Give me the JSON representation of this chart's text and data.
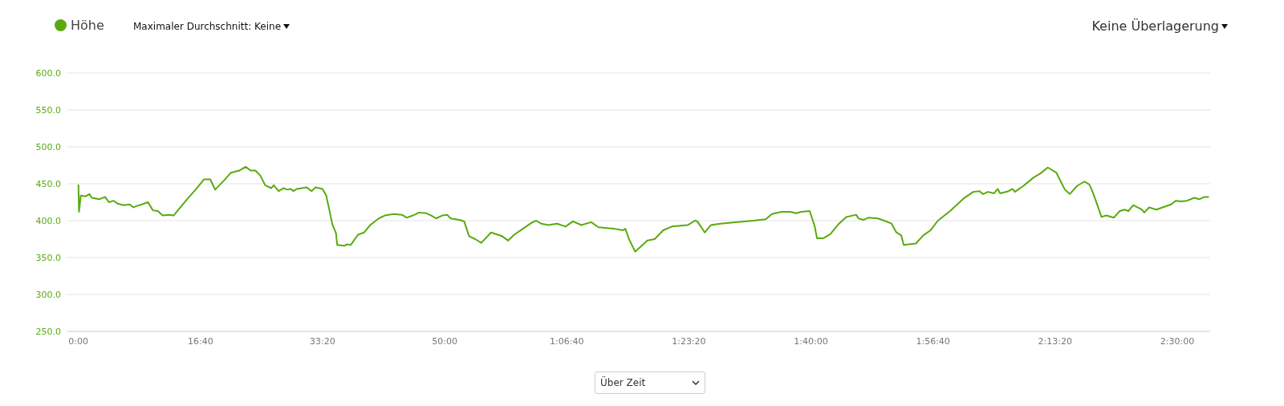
{
  "chart_data": {
    "type": "line",
    "annotations": [
      "Maximaler Durchschnitt: Keine",
      "Keine Überlagerung",
      "Über Zeit"
    ],
    "x": [
      0,
      5,
      20,
      60,
      90,
      110,
      170,
      220,
      250,
      290,
      320,
      370,
      420,
      450,
      480,
      520,
      570,
      610,
      650,
      690,
      740,
      780,
      820,
      890,
      960,
      1030,
      1080,
      1120,
      1190,
      1250,
      1320,
      1370,
      1410,
      1450,
      1490,
      1530,
      1580,
      1600,
      1640,
      1680,
      1710,
      1740,
      1760,
      1790,
      1870,
      1910,
      1940,
      2000,
      2030,
      2060,
      2080,
      2110,
      2120,
      2180,
      2200,
      2230,
      2290,
      2340,
      2390,
      2460,
      2510,
      2580,
      2650,
      2690,
      2740,
      2790,
      2850,
      2890,
      2930,
      2980,
      3020,
      3050,
      3120,
      3160,
      3200,
      3250,
      3300,
      3380,
      3470,
      3520,
      3570,
      3650,
      3720,
      3750,
      3790,
      3850,
      3920,
      3990,
      4050,
      4120,
      4200,
      4260,
      4390,
      4460,
      4480,
      4510,
      4560,
      4660,
      4720,
      4790,
      4860,
      4990,
      5050,
      5070,
      5130,
      5180,
      5260,
      5400,
      5530,
      5630,
      5680,
      5760,
      5830,
      5880,
      5920,
      5990,
      6030,
      6050,
      6100,
      6160,
      6230,
      6290,
      6370,
      6390,
      6430,
      6470,
      6550,
      6600,
      6660,
      6700,
      6740,
      6760,
      6800,
      6860,
      6920,
      6980,
      7040,
      7140,
      7250,
      7330,
      7380,
      7410,
      7450,
      7500,
      7530,
      7550,
      7620,
      7650,
      7670,
      7740,
      7820,
      7880,
      7940,
      8010,
      8080,
      8120,
      8180,
      8240,
      8280,
      8300,
      8340,
      8380,
      8420,
      8480,
      8530,
      8570,
      8600,
      8640,
      8710,
      8730,
      8770,
      8830,
      8880,
      8950,
      8990,
      9030,
      9080,
      9140,
      9180,
      9220,
      9260
    ],
    "series": [
      {
        "name": "Höhe",
        "color": "#5aaa0f",
        "values": [
          449,
          412,
          434,
          433,
          436,
          431,
          429,
          432,
          425,
          427,
          423,
          421,
          422,
          418,
          420,
          422,
          425,
          414,
          413,
          407,
          408,
          407,
          415,
          429,
          442,
          456,
          456,
          442,
          454,
          465,
          468,
          473,
          468,
          468,
          461,
          448,
          444,
          448,
          440,
          444,
          442,
          443,
          440,
          443,
          445,
          440,
          445,
          443,
          434,
          411,
          395,
          383,
          367,
          366,
          368,
          367,
          381,
          384,
          394,
          403,
          407,
          409,
          408,
          404,
          407,
          411,
          410,
          407,
          403,
          407,
          408,
          403,
          401,
          399,
          379,
          375,
          370,
          384,
          379,
          373,
          381,
          390,
          398,
          400,
          396,
          394,
          396,
          392,
          399,
          394,
          398,
          391,
          389,
          387,
          389,
          375,
          358,
          373,
          375,
          387,
          392,
          394,
          400,
          399,
          384,
          394,
          396,
          398,
          400,
          402,
          409,
          412,
          412,
          410,
          412,
          413,
          393,
          376,
          376,
          382,
          396,
          405,
          408,
          403,
          401,
          404,
          403,
          400,
          396,
          384,
          380,
          367,
          368,
          369,
          380,
          387,
          400,
          413,
          430,
          439,
          440,
          436,
          439,
          437,
          443,
          437,
          440,
          443,
          439,
          447,
          458,
          464,
          472,
          465,
          442,
          436,
          447,
          453,
          449,
          442,
          424,
          405,
          407,
          404,
          413,
          415,
          413,
          421,
          415,
          411,
          418,
          415,
          418,
          422,
          427,
          426,
          427,
          431,
          429,
          432,
          432
        ]
      }
    ],
    "xlim": [
      -90,
      9270
    ],
    "xticks": [
      {
        "value": 0,
        "label": "0:00"
      },
      {
        "value": 1000,
        "label": "16:40"
      },
      {
        "value": 2000,
        "label": "33:20"
      },
      {
        "value": 3000,
        "label": "50:00"
      },
      {
        "value": 4000,
        "label": "1:06:40"
      },
      {
        "value": 5000,
        "label": "1:23:20"
      },
      {
        "value": 6000,
        "label": "1:40:00"
      },
      {
        "value": 7000,
        "label": "1:56:40"
      },
      {
        "value": 8000,
        "label": "2:13:20"
      },
      {
        "value": 9000,
        "label": "2:30:00"
      }
    ],
    "ylim": [
      250,
      600
    ],
    "yticks": [
      {
        "value": 250,
        "label": "250.0"
      },
      {
        "value": 300,
        "label": "300.0"
      },
      {
        "value": 350,
        "label": "350.0"
      },
      {
        "value": 400,
        "label": "400.0"
      },
      {
        "value": 450,
        "label": "450.0"
      },
      {
        "value": 500,
        "label": "500.0"
      },
      {
        "value": 550,
        "label": "550.0"
      },
      {
        "value": 600,
        "label": "600.0"
      }
    ],
    "grid": "y",
    "legend": "top left",
    "marker": "none",
    "line_style": "solid"
  }
}
